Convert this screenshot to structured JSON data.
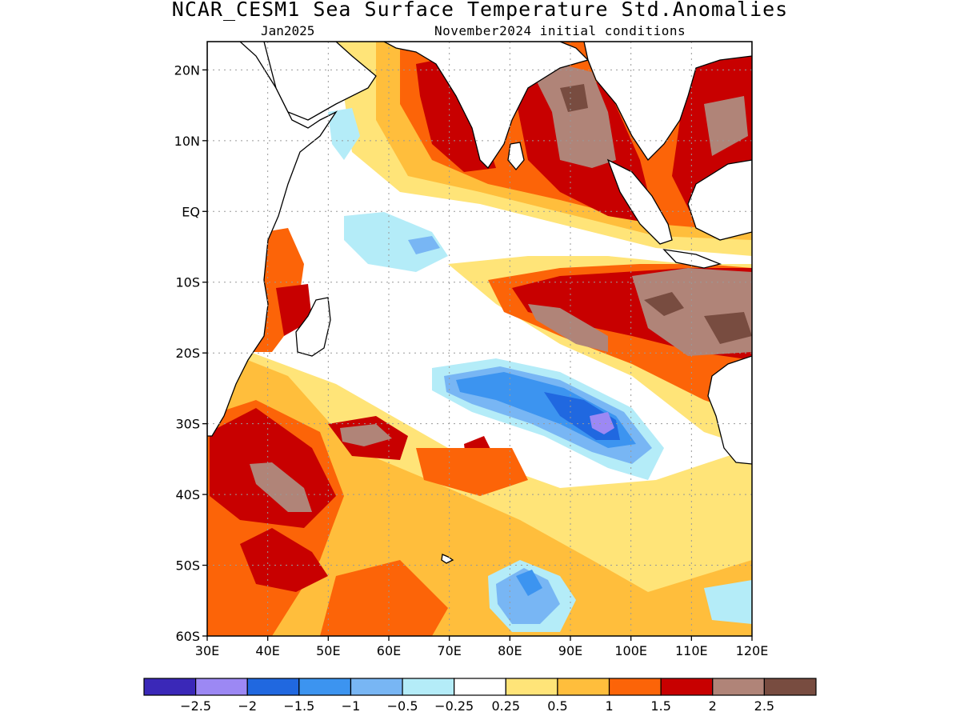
{
  "title": "NCAR_CESM1 Sea Surface Temperature Std.Anomalies",
  "subtitle_left": "Jan2025",
  "subtitle_right": "November2024 initial conditions",
  "map": {
    "lon_range": [
      30,
      120
    ],
    "lat_range": [
      -60,
      24
    ],
    "lat_ticks": [
      {
        "value": 20,
        "label": "20N"
      },
      {
        "value": 10,
        "label": "10N"
      },
      {
        "value": 0,
        "label": "EQ"
      },
      {
        "value": -10,
        "label": "10S"
      },
      {
        "value": -20,
        "label": "20S"
      },
      {
        "value": -30,
        "label": "30S"
      },
      {
        "value": -40,
        "label": "40S"
      },
      {
        "value": -50,
        "label": "50S"
      },
      {
        "value": -60,
        "label": "60S"
      }
    ],
    "lon_ticks": [
      {
        "value": 30,
        "label": "30E"
      },
      {
        "value": 40,
        "label": "40E"
      },
      {
        "value": 50,
        "label": "50E"
      },
      {
        "value": 60,
        "label": "60E"
      },
      {
        "value": 70,
        "label": "70E"
      },
      {
        "value": 80,
        "label": "80E"
      },
      {
        "value": 90,
        "label": "90E"
      },
      {
        "value": 100,
        "label": "100E"
      },
      {
        "value": 110,
        "label": "110E"
      },
      {
        "value": 120,
        "label": "120E"
      }
    ],
    "grid": true
  },
  "colorbar": {
    "colors": [
      "#3a28b8",
      "#9c88f4",
      "#2068e0",
      "#3c94f0",
      "#78b6f4",
      "#b4ecf8",
      "#ffffff",
      "#ffe478",
      "#ffbe3c",
      "#fc6408",
      "#c80000",
      "#b08478",
      "#784c40"
    ],
    "labels": [
      "-2.5",
      "-2",
      "-1.5",
      "-1",
      "-0.5",
      "-0.25",
      "0.25",
      "0.5",
      "1",
      "1.5",
      "2",
      "2.5"
    ]
  },
  "anomaly_regions": [
    {
      "name": "Southeast Indian Ocean cold core",
      "lon": 92,
      "lat": -27,
      "level": -2
    },
    {
      "name": "Southern Ocean cold patch",
      "lon": 83,
      "lat": -53,
      "level": -1.5
    },
    {
      "name": "Bay of Bengal warm",
      "lon": 90,
      "lat": 15,
      "level": 2.5
    },
    {
      "name": "Arabian Sea west coast of India warm",
      "lon": 72,
      "lat": 15,
      "level": 2
    },
    {
      "name": "Indonesia / NW Australia warm",
      "lon": 110,
      "lat": -15,
      "level": 2.5
    },
    {
      "name": "Southwest Indian Ocean warm",
      "lon": 40,
      "lat": -38,
      "level": 2
    },
    {
      "name": "Central south Indian Ocean warm",
      "lon": 55,
      "lat": -31,
      "level": 2.5
    }
  ]
}
